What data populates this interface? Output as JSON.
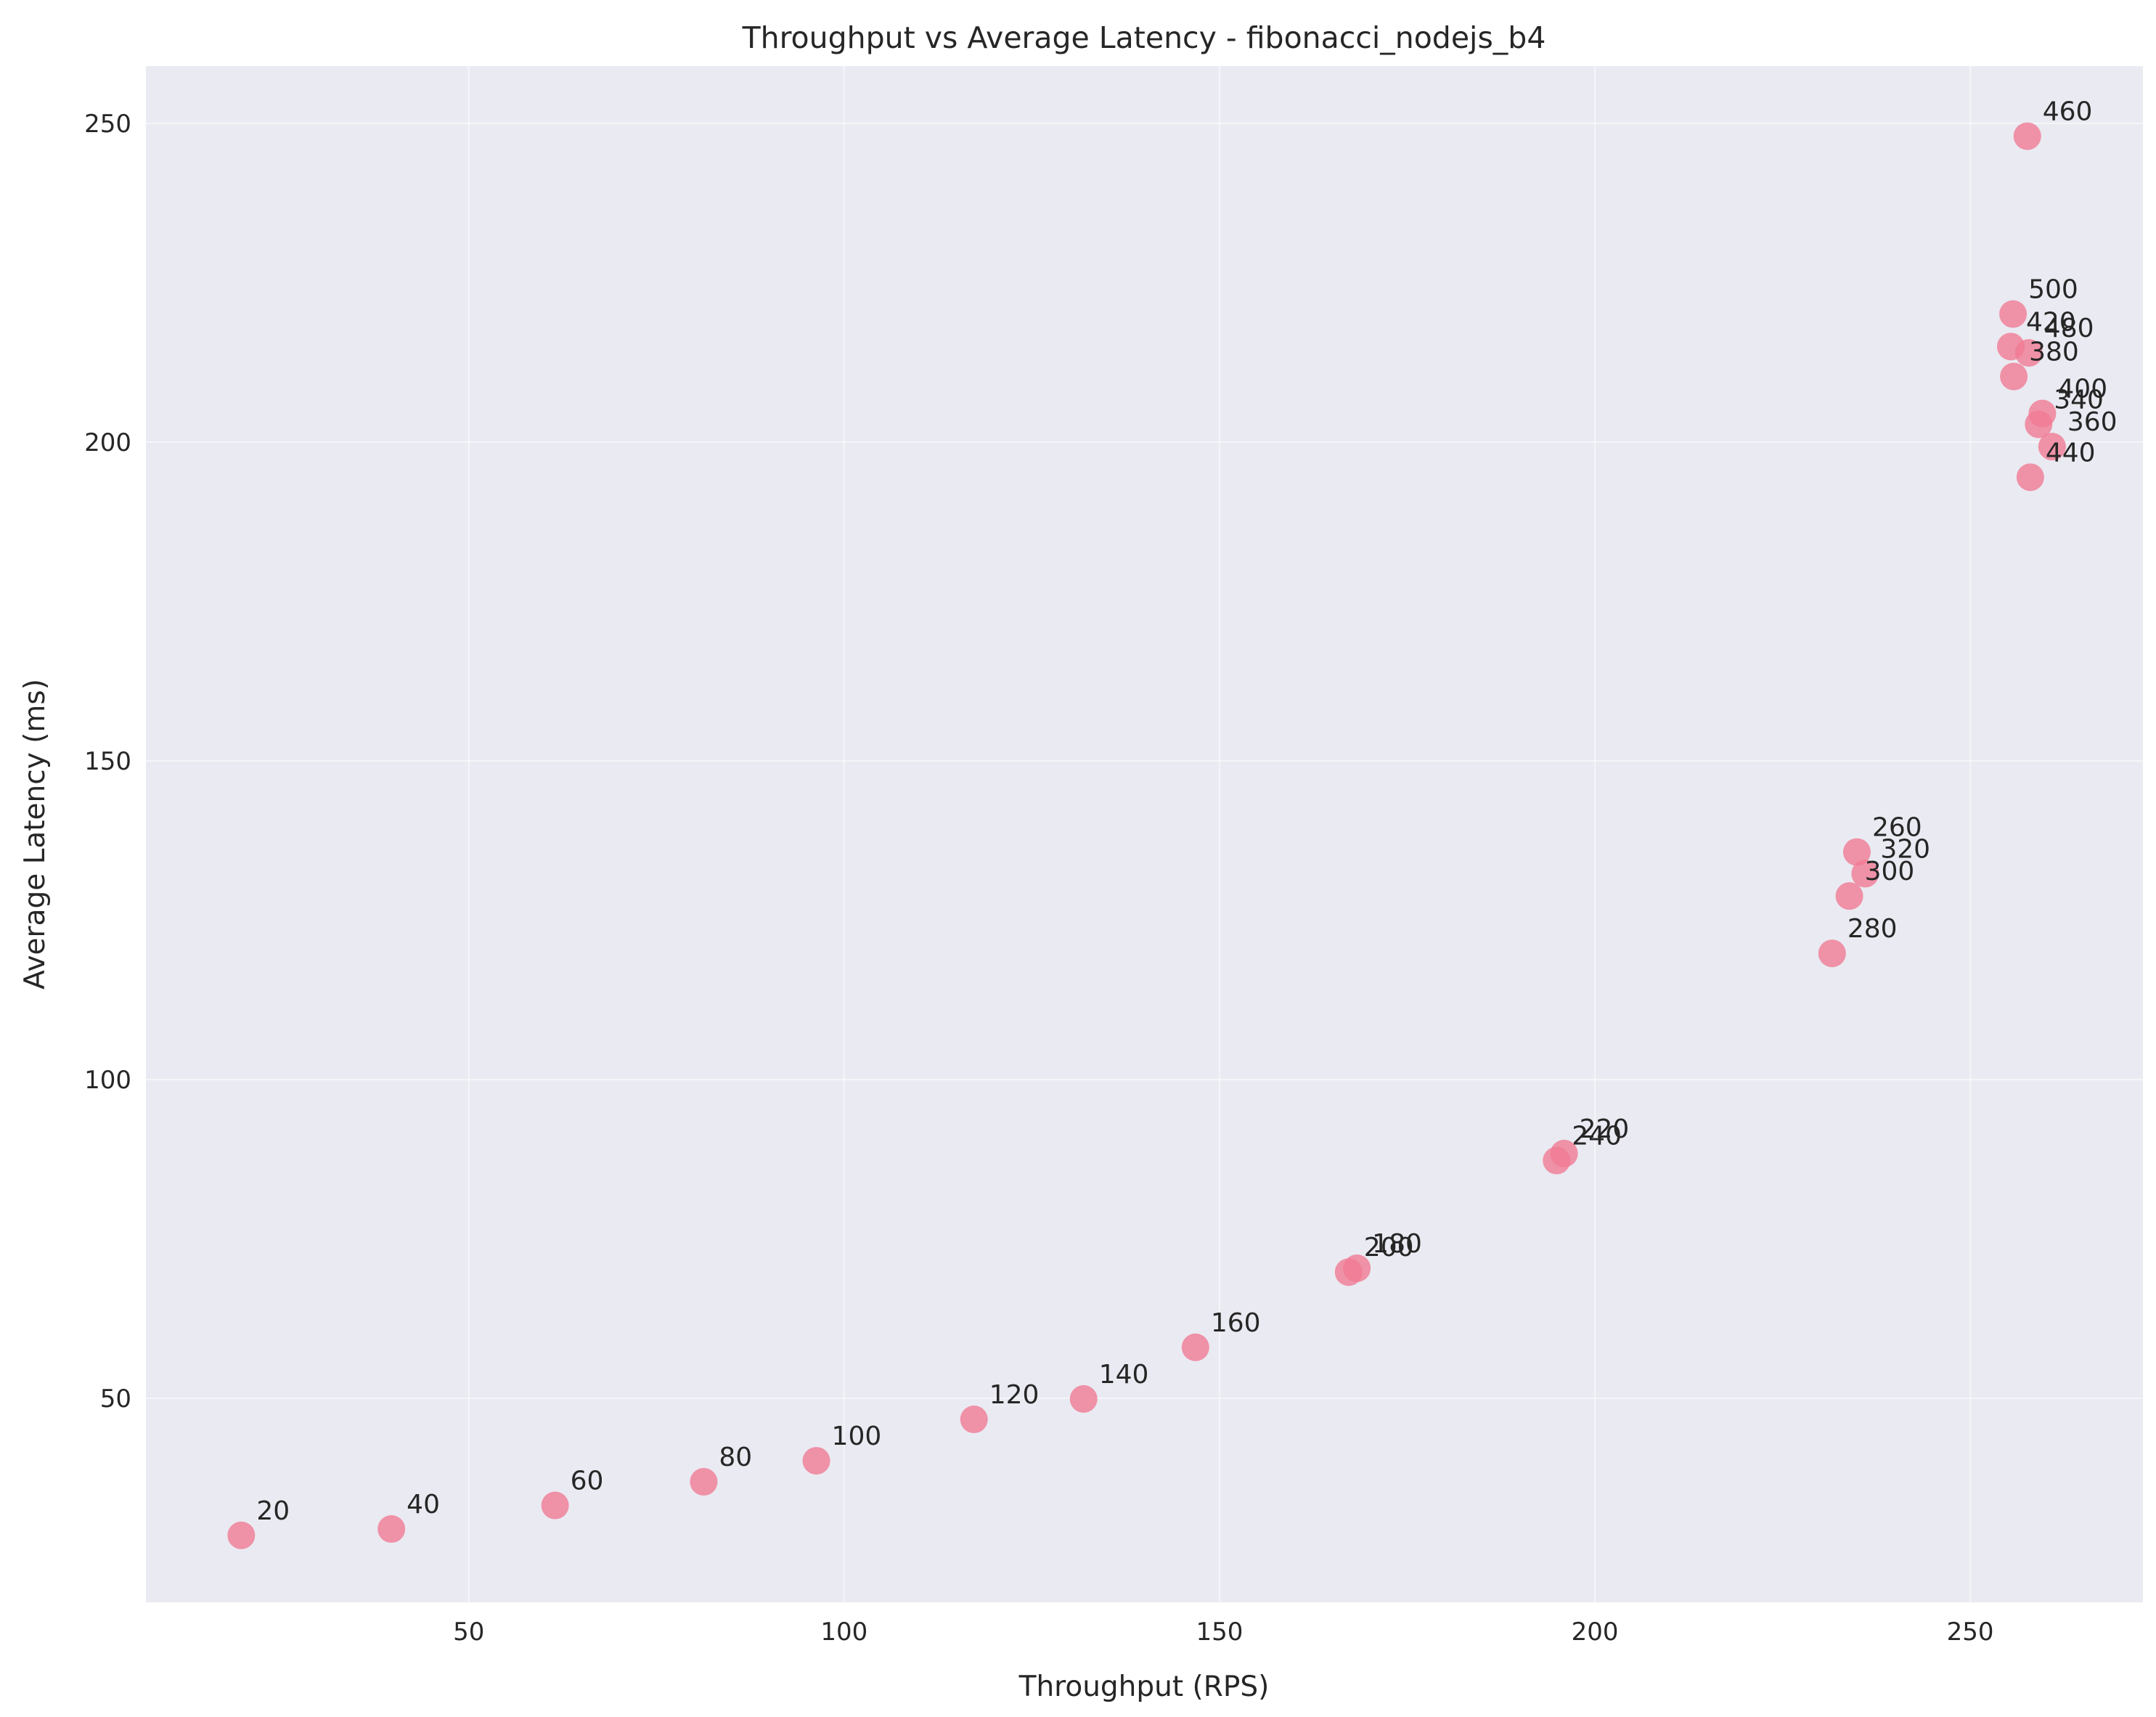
{
  "chart_data": {
    "type": "scatter",
    "title": "Throughput vs Average Latency - fibonacci_nodejs_b4",
    "xlabel": "Throughput (RPS)",
    "ylabel": "Average Latency (ms)",
    "xlim": [
      7,
      273
    ],
    "ylim": [
      18,
      259
    ],
    "xticks": [
      50,
      100,
      150,
      200,
      250
    ],
    "yticks": [
      50,
      100,
      150,
      200,
      250
    ],
    "grid": true,
    "point_color": "#f07a93",
    "background_color": "#eaeaf2",
    "points": [
      {
        "label": "20",
        "x": 19.7,
        "y": 28.5
      },
      {
        "label": "40",
        "x": 39.7,
        "y": 29.5
      },
      {
        "label": "60",
        "x": 61.5,
        "y": 33.2
      },
      {
        "label": "80",
        "x": 81.3,
        "y": 36.9
      },
      {
        "label": "100",
        "x": 96.3,
        "y": 40.2
      },
      {
        "label": "120",
        "x": 117.3,
        "y": 46.7
      },
      {
        "label": "140",
        "x": 131.9,
        "y": 49.9
      },
      {
        "label": "160",
        "x": 146.8,
        "y": 58.0
      },
      {
        "label": "180",
        "x": 168.3,
        "y": 70.4
      },
      {
        "label": "200",
        "x": 167.2,
        "y": 69.8
      },
      {
        "label": "220",
        "x": 195.9,
        "y": 88.4
      },
      {
        "label": "240",
        "x": 194.9,
        "y": 87.3
      },
      {
        "label": "260",
        "x": 234.9,
        "y": 135.7
      },
      {
        "label": "280",
        "x": 231.6,
        "y": 119.8
      },
      {
        "label": "300",
        "x": 233.9,
        "y": 128.8
      },
      {
        "label": "320",
        "x": 236.0,
        "y": 132.3
      },
      {
        "label": "340",
        "x": 259.1,
        "y": 202.8
      },
      {
        "label": "360",
        "x": 260.9,
        "y": 199.3
      },
      {
        "label": "380",
        "x": 255.8,
        "y": 210.3
      },
      {
        "label": "400",
        "x": 259.6,
        "y": 204.5
      },
      {
        "label": "420",
        "x": 255.4,
        "y": 215.0
      },
      {
        "label": "440",
        "x": 258.0,
        "y": 194.5
      },
      {
        "label": "460",
        "x": 257.6,
        "y": 248.0
      },
      {
        "label": "480",
        "x": 257.8,
        "y": 214.0
      },
      {
        "label": "500",
        "x": 255.7,
        "y": 220.1
      }
    ]
  }
}
